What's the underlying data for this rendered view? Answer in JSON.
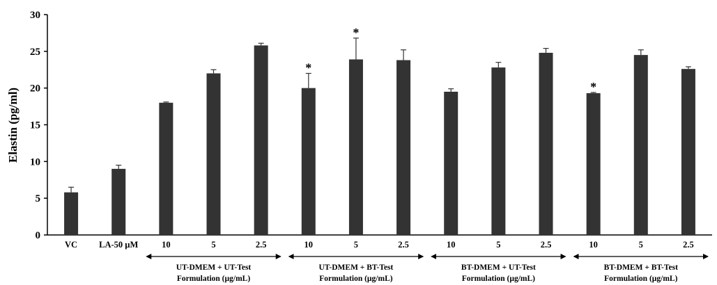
{
  "chart_data": {
    "type": "bar",
    "ylabel": "Elastin (pg/ml)",
    "ylim": [
      0,
      30
    ],
    "yticks": [
      0,
      5,
      10,
      15,
      20,
      25,
      30
    ],
    "grid": false,
    "bar_color": "#333333",
    "categories": [
      "VC",
      "LA-50 µM",
      "10",
      "5",
      "2.5",
      "10",
      "5",
      "2.5",
      "10",
      "5",
      "2.5",
      "10",
      "5",
      "2.5"
    ],
    "values": [
      5.8,
      9.0,
      18.0,
      22.0,
      25.8,
      20.0,
      23.9,
      23.8,
      19.5,
      22.8,
      24.8,
      19.3,
      24.5,
      22.6
    ],
    "errors": [
      0.7,
      0.5,
      0.1,
      0.5,
      0.3,
      2.0,
      2.9,
      1.4,
      0.4,
      0.7,
      0.6,
      0.1,
      0.7,
      0.3
    ],
    "significance": [
      "",
      "",
      "",
      "",
      "",
      "*",
      "*",
      "",
      "",
      "",
      "",
      "*",
      "",
      ""
    ],
    "groups": [
      {
        "line1": "UT-DMEM + UT-Test",
        "line2": "Formulation (µg/mL)",
        "start": 2,
        "end": 4
      },
      {
        "line1": "UT-DMEM + BT-Test",
        "line2": "Formulation (µg/mL)",
        "start": 5,
        "end": 7
      },
      {
        "line1": "BT-DMEM + UT-Test",
        "line2": "Formulation (µg/mL)",
        "start": 8,
        "end": 10
      },
      {
        "line1": "BT-DMEM + BT-Test",
        "line2": "Formulation (µg/mL)",
        "start": 11,
        "end": 13
      }
    ]
  }
}
